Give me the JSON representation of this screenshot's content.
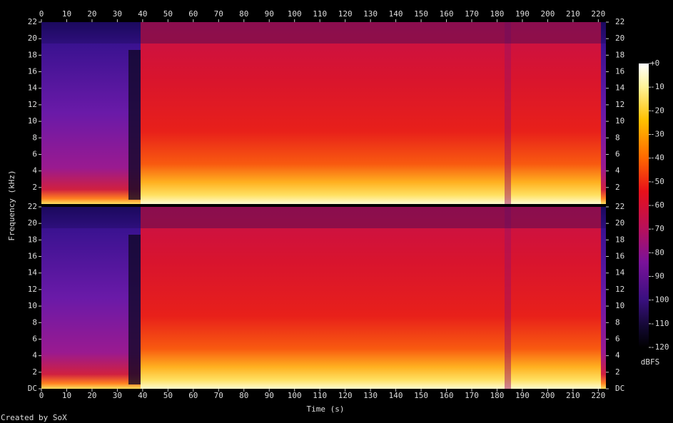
{
  "chart_data": {
    "type": "spectrogram",
    "x_label": "Time (s)",
    "y_label": "Frequency (kHz)",
    "xlim": [
      0,
      223
    ],
    "xticks": [
      0,
      10,
      20,
      30,
      40,
      50,
      60,
      70,
      80,
      90,
      100,
      110,
      120,
      130,
      140,
      150,
      160,
      170,
      180,
      190,
      200,
      210,
      220
    ],
    "channels": [
      {
        "ylim": [
          0,
          22
        ],
        "yticks": [
          2,
          4,
          6,
          8,
          10,
          12,
          14,
          16,
          18,
          20,
          22
        ]
      },
      {
        "ylim": [
          0,
          22
        ],
        "yticks": [
          {
            "value": 0,
            "label": "DC"
          },
          2,
          4,
          6,
          8,
          10,
          12,
          14,
          16,
          18,
          20,
          22
        ]
      }
    ],
    "colorbar": {
      "label": "dBFS",
      "lim": [
        -120,
        0
      ],
      "ticks": [
        {
          "value": 0,
          "label": "+0"
        },
        -10,
        -20,
        -30,
        -40,
        -50,
        -60,
        -70,
        -80,
        -90,
        -100,
        -110,
        -120
      ]
    },
    "footer": "Created by SoX"
  }
}
